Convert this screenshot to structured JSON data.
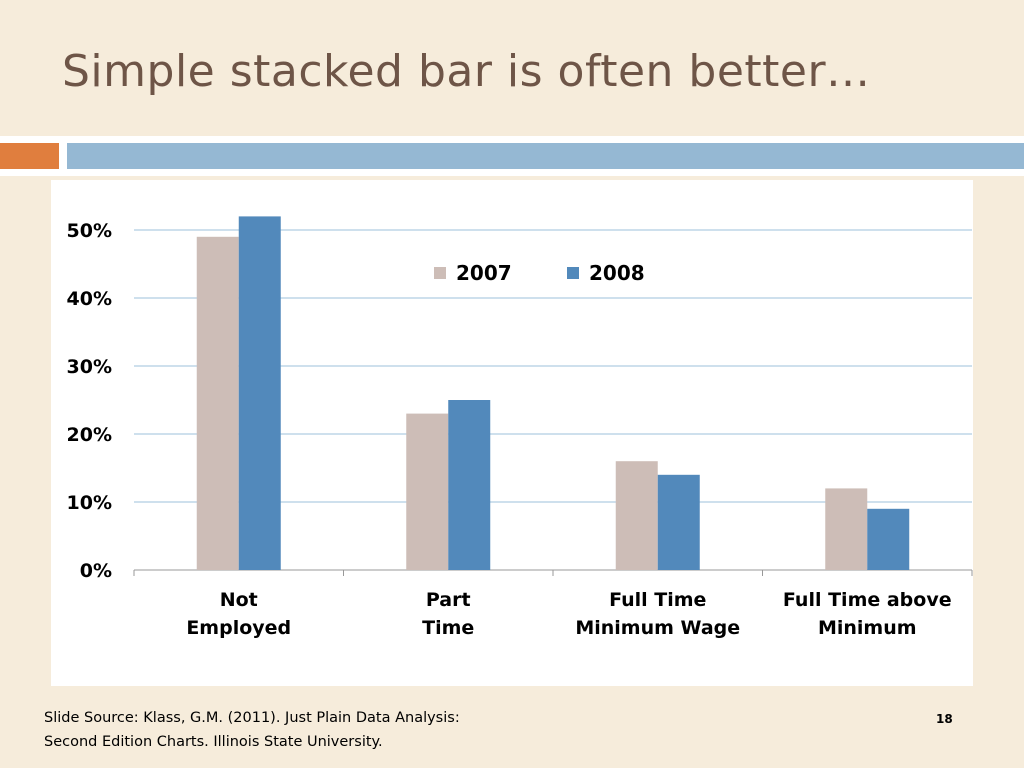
{
  "slide": {
    "title": "Simple stacked bar is often better…",
    "source_line1": "Slide Source: Klass, G.M. (2011). Just Plain Data Analysis:",
    "source_line2": "Second Edition Charts. Illinois State University.",
    "page_number": "18"
  },
  "colors": {
    "background": "#f6ecdb",
    "title": "#6e5547",
    "accent_orange": "#e07e3e",
    "accent_blue": "#95b8d3",
    "series_2007": "#cdbdb7",
    "series_2008": "#5289bb",
    "gridline": "#9ec0db"
  },
  "chart_data": {
    "type": "bar",
    "title": "",
    "xlabel": "",
    "ylabel": "",
    "categories": [
      [
        "Not",
        "Employed"
      ],
      [
        "Part",
        "Time"
      ],
      [
        "Full Time",
        "Minimum Wage"
      ],
      [
        "Full Time above",
        "Minimum"
      ]
    ],
    "series": [
      {
        "name": "2007",
        "values": [
          49,
          23,
          16,
          12
        ]
      },
      {
        "name": "2008",
        "values": [
          52,
          25,
          14,
          9
        ]
      }
    ],
    "ylim": [
      0,
      50
    ],
    "yticks": [
      "0%",
      "10%",
      "20%",
      "30%",
      "40%",
      "50%"
    ],
    "grid": true,
    "legend_position": "top-center"
  }
}
